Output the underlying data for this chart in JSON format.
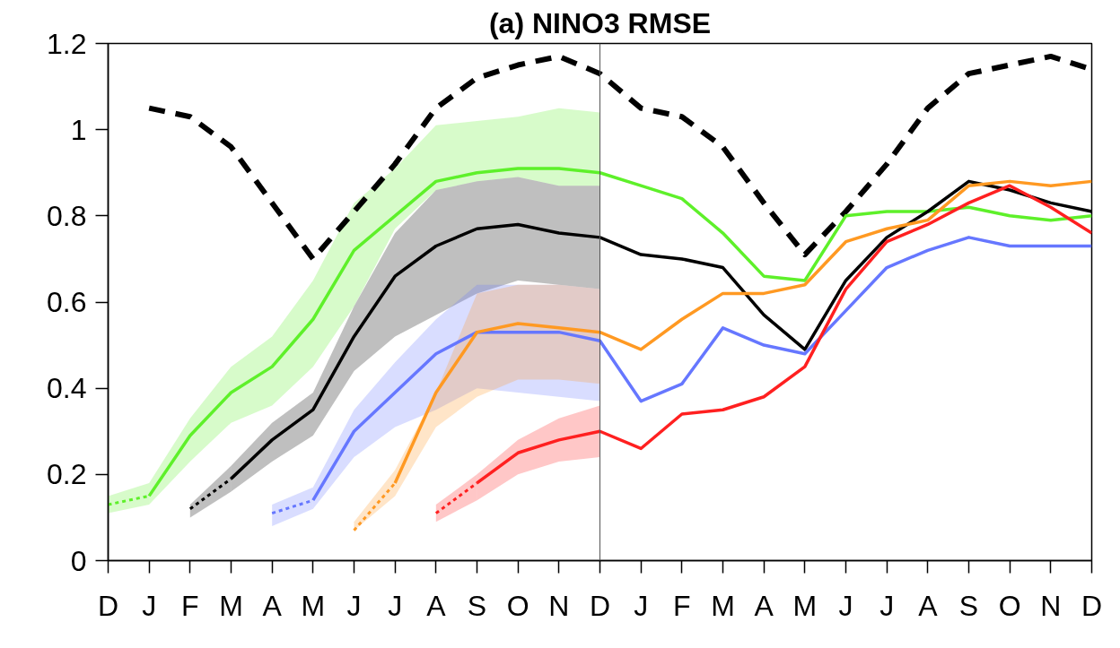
{
  "chart_data": {
    "type": "line",
    "title": "(a) NINO3 RMSE",
    "categories": [
      "D",
      "J",
      "F",
      "M",
      "A",
      "M",
      "J",
      "J",
      "A",
      "S",
      "O",
      "N",
      "D",
      "J",
      "F",
      "M",
      "A",
      "M",
      "J",
      "J",
      "A",
      "S",
      "O",
      "N",
      "D"
    ],
    "ylim": [
      0,
      1.2
    ],
    "yticks": [
      0,
      0.2,
      0.4,
      0.6,
      0.8,
      1,
      1.2
    ],
    "series": [
      {
        "color": "#000000",
        "line_style": "dashed",
        "values": [
          null,
          1.05,
          1.03,
          0.96,
          0.83,
          0.7,
          0.81,
          0.92,
          1.05,
          1.12,
          1.15,
          1.17,
          1.13,
          1.05,
          1.03,
          0.96,
          0.83,
          0.71,
          0.81,
          0.92,
          1.05,
          1.13,
          1.15,
          1.17,
          1.14
        ]
      },
      {
        "color": "#5ef02a",
        "line_style": "dotted",
        "values": [
          0.13,
          0.15,
          null,
          null,
          null,
          null,
          null,
          null,
          null,
          null,
          null,
          null,
          null,
          null,
          null,
          null,
          null,
          null,
          null,
          null,
          null,
          null,
          null,
          null,
          null
        ],
        "lower": [
          0.11,
          0.13,
          null,
          null,
          null,
          null,
          null,
          null,
          null,
          null,
          null,
          null,
          null,
          null,
          null,
          null,
          null,
          null,
          null,
          null,
          null,
          null,
          null,
          null,
          null
        ],
        "upper": [
          0.15,
          0.18,
          null,
          null,
          null,
          null,
          null,
          null,
          null,
          null,
          null,
          null,
          null,
          null,
          null,
          null,
          null,
          null,
          null,
          null,
          null,
          null,
          null,
          null,
          null
        ]
      },
      {
        "color": "#5ef02a",
        "line_style": "solid",
        "values": [
          null,
          0.15,
          0.29,
          0.39,
          0.45,
          0.56,
          0.72,
          0.8,
          0.88,
          0.9,
          0.91,
          0.91,
          0.9,
          0.87,
          0.84,
          0.76,
          0.66,
          0.65,
          0.8,
          0.81,
          0.81,
          0.82,
          0.8,
          0.79,
          0.8
        ],
        "lower": [
          null,
          0.13,
          0.23,
          0.32,
          0.36,
          0.45,
          0.59,
          0.77,
          0.86,
          0.88,
          0.89,
          0.87,
          0.87,
          null,
          null,
          null,
          null,
          null,
          null,
          null,
          null,
          null,
          null,
          null,
          null
        ],
        "upper": [
          null,
          0.18,
          0.33,
          0.45,
          0.52,
          0.65,
          0.83,
          0.91,
          1.01,
          1.02,
          1.03,
          1.05,
          1.04,
          null,
          null,
          null,
          null,
          null,
          null,
          null,
          null,
          null,
          null,
          null,
          null
        ]
      },
      {
        "color": "#000000",
        "line_style": "dotted",
        "values": [
          null,
          null,
          0.12,
          0.19,
          null,
          null,
          null,
          null,
          null,
          null,
          null,
          null,
          null,
          null,
          null,
          null,
          null,
          null,
          null,
          null,
          null,
          null,
          null,
          null,
          null
        ],
        "lower": [
          null,
          null,
          0.1,
          0.16,
          null,
          null,
          null,
          null,
          null,
          null,
          null,
          null,
          null,
          null,
          null,
          null,
          null,
          null,
          null,
          null,
          null,
          null,
          null,
          null,
          null
        ],
        "upper": [
          null,
          null,
          0.13,
          0.22,
          null,
          null,
          null,
          null,
          null,
          null,
          null,
          null,
          null,
          null,
          null,
          null,
          null,
          null,
          null,
          null,
          null,
          null,
          null,
          null,
          null
        ]
      },
      {
        "color": "#000000",
        "line_style": "solid",
        "values": [
          null,
          null,
          null,
          0.19,
          0.28,
          0.35,
          0.52,
          0.66,
          0.73,
          0.77,
          0.78,
          0.76,
          0.75,
          0.71,
          0.7,
          0.68,
          0.57,
          0.49,
          0.65,
          0.75,
          0.81,
          0.88,
          0.86,
          0.83,
          0.81
        ],
        "lower": [
          null,
          null,
          null,
          0.16,
          0.23,
          0.29,
          0.44,
          0.52,
          0.57,
          0.62,
          0.65,
          0.64,
          0.63,
          null,
          null,
          null,
          null,
          null,
          null,
          null,
          null,
          null,
          null,
          null,
          null
        ],
        "upper": [
          null,
          null,
          null,
          0.22,
          0.32,
          0.39,
          0.59,
          0.76,
          0.86,
          0.88,
          0.89,
          0.87,
          0.87,
          null,
          null,
          null,
          null,
          null,
          null,
          null,
          null,
          null,
          null,
          null,
          null
        ]
      },
      {
        "color": "#6677ff",
        "line_style": "dotted",
        "values": [
          null,
          null,
          null,
          null,
          0.11,
          0.14,
          null,
          null,
          null,
          null,
          null,
          null,
          null,
          null,
          null,
          null,
          null,
          null,
          null,
          null,
          null,
          null,
          null,
          null,
          null
        ],
        "lower": [
          null,
          null,
          null,
          null,
          0.08,
          0.12,
          null,
          null,
          null,
          null,
          null,
          null,
          null,
          null,
          null,
          null,
          null,
          null,
          null,
          null,
          null,
          null,
          null,
          null,
          null
        ],
        "upper": [
          null,
          null,
          null,
          null,
          0.13,
          0.17,
          null,
          null,
          null,
          null,
          null,
          null,
          null,
          null,
          null,
          null,
          null,
          null,
          null,
          null,
          null,
          null,
          null,
          null,
          null
        ]
      },
      {
        "color": "#6677ff",
        "line_style": "solid",
        "values": [
          null,
          null,
          null,
          null,
          null,
          0.14,
          0.3,
          0.39,
          0.48,
          0.53,
          0.53,
          0.53,
          0.51,
          0.37,
          0.41,
          0.54,
          0.5,
          0.48,
          0.58,
          0.68,
          0.72,
          0.75,
          0.73,
          0.73,
          0.73
        ],
        "lower": [
          null,
          null,
          null,
          null,
          null,
          0.12,
          0.24,
          0.31,
          0.35,
          0.4,
          0.39,
          0.38,
          0.37,
          null,
          null,
          null,
          null,
          null,
          null,
          null,
          null,
          null,
          null,
          null,
          null
        ],
        "upper": [
          null,
          null,
          null,
          null,
          null,
          0.17,
          0.35,
          0.46,
          0.56,
          0.64,
          0.64,
          0.64,
          0.63,
          null,
          null,
          null,
          null,
          null,
          null,
          null,
          null,
          null,
          null,
          null,
          null
        ]
      },
      {
        "color": "#ff9922",
        "line_style": "dotted",
        "values": [
          null,
          null,
          null,
          null,
          null,
          null,
          0.07,
          0.18,
          null,
          null,
          null,
          null,
          null,
          null,
          null,
          null,
          null,
          null,
          null,
          null,
          null,
          null,
          null,
          null,
          null
        ],
        "lower": [
          null,
          null,
          null,
          null,
          null,
          null,
          0.07,
          0.15,
          null,
          null,
          null,
          null,
          null,
          null,
          null,
          null,
          null,
          null,
          null,
          null,
          null,
          null,
          null,
          null,
          null
        ],
        "upper": [
          null,
          null,
          null,
          null,
          null,
          null,
          0.09,
          0.21,
          null,
          null,
          null,
          null,
          null,
          null,
          null,
          null,
          null,
          null,
          null,
          null,
          null,
          null,
          null,
          null,
          null
        ]
      },
      {
        "color": "#ff9922",
        "line_style": "solid",
        "values": [
          null,
          null,
          null,
          null,
          null,
          null,
          null,
          0.18,
          0.39,
          0.53,
          0.55,
          0.54,
          0.53,
          0.49,
          0.56,
          0.62,
          0.62,
          0.64,
          0.74,
          0.77,
          0.79,
          0.87,
          0.88,
          0.87,
          0.88
        ],
        "lower": [
          null,
          null,
          null,
          null,
          null,
          null,
          null,
          0.15,
          0.31,
          0.38,
          0.42,
          0.42,
          0.41,
          null,
          null,
          null,
          null,
          null,
          null,
          null,
          null,
          null,
          null,
          null,
          null
        ],
        "upper": [
          null,
          null,
          null,
          null,
          null,
          null,
          null,
          0.21,
          0.39,
          0.62,
          0.64,
          0.64,
          0.63,
          null,
          null,
          null,
          null,
          null,
          null,
          null,
          null,
          null,
          null,
          null,
          null
        ]
      },
      {
        "color": "#ff2020",
        "line_style": "dotted",
        "values": [
          null,
          null,
          null,
          null,
          null,
          null,
          null,
          null,
          0.11,
          0.18,
          null,
          null,
          null,
          null,
          null,
          null,
          null,
          null,
          null,
          null,
          null,
          null,
          null,
          null,
          null
        ],
        "lower": [
          null,
          null,
          null,
          null,
          null,
          null,
          null,
          null,
          0.09,
          0.14,
          null,
          null,
          null,
          null,
          null,
          null,
          null,
          null,
          null,
          null,
          null,
          null,
          null,
          null,
          null
        ],
        "upper": [
          null,
          null,
          null,
          null,
          null,
          null,
          null,
          null,
          0.13,
          0.2,
          null,
          null,
          null,
          null,
          null,
          null,
          null,
          null,
          null,
          null,
          null,
          null,
          null,
          null,
          null
        ]
      },
      {
        "color": "#ff2020",
        "line_style": "solid",
        "values": [
          null,
          null,
          null,
          null,
          null,
          null,
          null,
          null,
          null,
          0.18,
          0.25,
          0.28,
          0.3,
          0.26,
          0.34,
          0.35,
          0.38,
          0.45,
          0.63,
          0.74,
          0.78,
          0.83,
          0.87,
          0.82,
          0.76
        ],
        "lower": [
          null,
          null,
          null,
          null,
          null,
          null,
          null,
          null,
          null,
          0.14,
          0.2,
          0.23,
          0.24,
          null,
          null,
          null,
          null,
          null,
          null,
          null,
          null,
          null,
          null,
          null,
          null
        ],
        "upper": [
          null,
          null,
          null,
          null,
          null,
          null,
          null,
          null,
          null,
          0.2,
          0.28,
          0.33,
          0.36,
          null,
          null,
          null,
          null,
          null,
          null,
          null,
          null,
          null,
          null,
          null,
          null
        ]
      }
    ]
  }
}
